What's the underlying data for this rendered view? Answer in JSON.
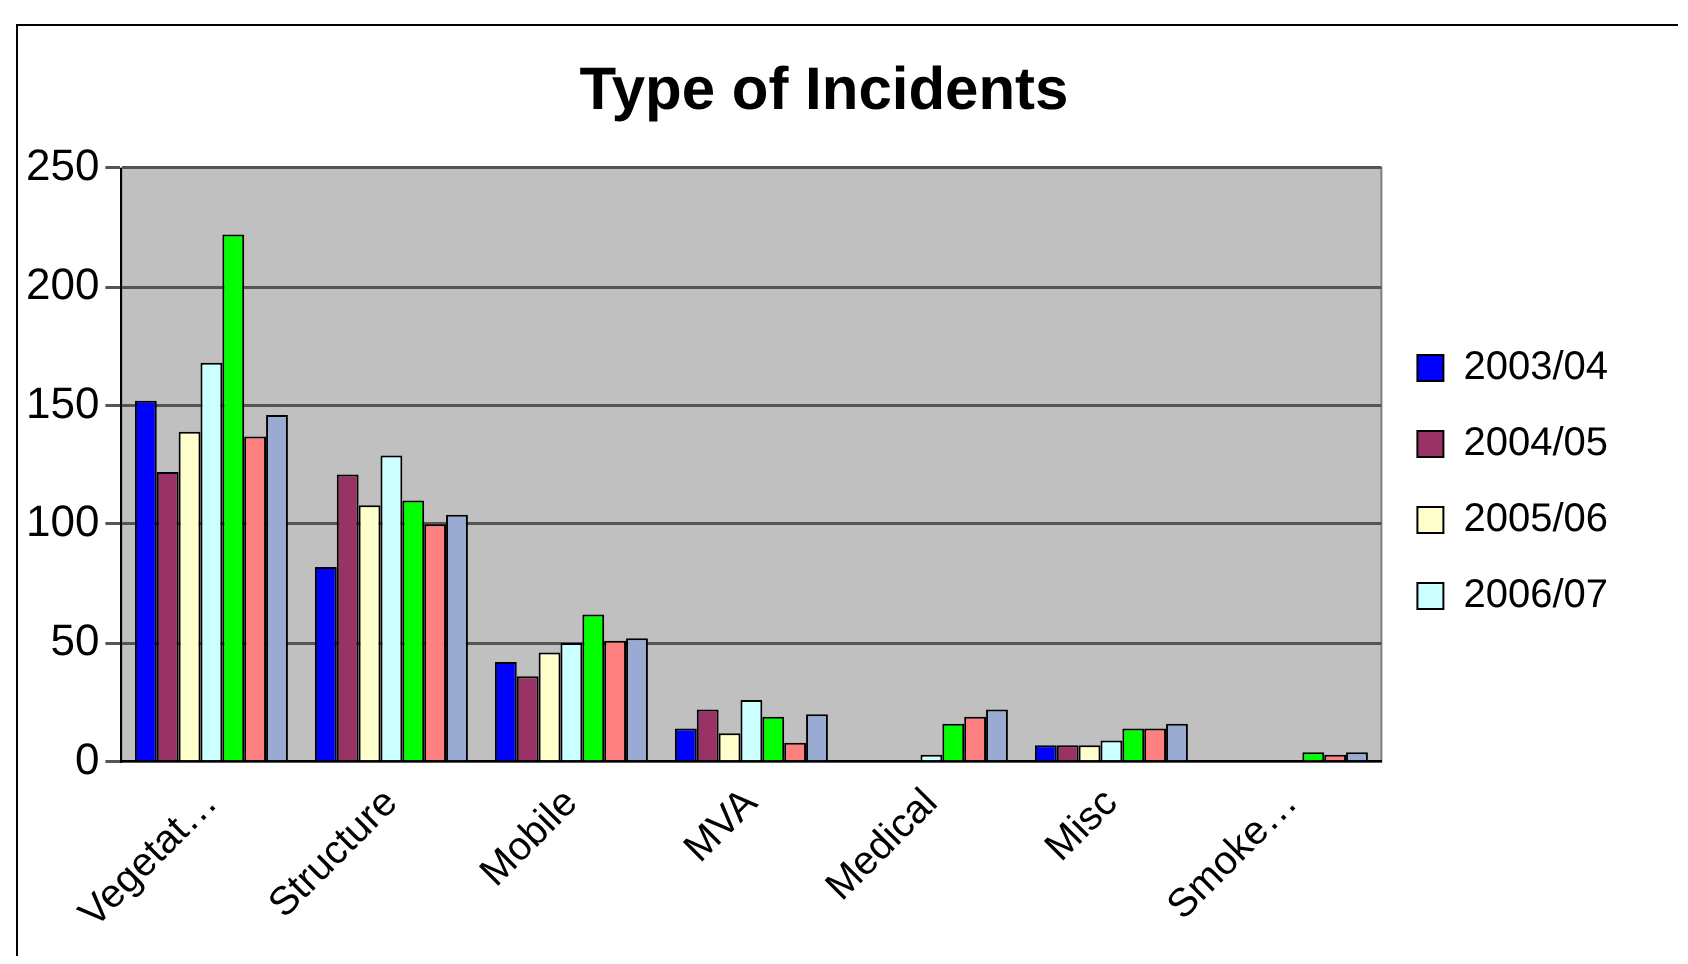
{
  "chart_data": {
    "type": "bar",
    "title": "Type of Incidents",
    "categories": [
      "Vegetat…",
      "Structure",
      "Mobile",
      "MVA",
      "Medical",
      "Misc",
      "Smoke…"
    ],
    "series": [
      {
        "name": "2003/04",
        "color": "#0000ff",
        "values": [
          152,
          82,
          42,
          14,
          0,
          7,
          0
        ]
      },
      {
        "name": "2004/05",
        "color": "#993366",
        "values": [
          122,
          121,
          36,
          22,
          0,
          7,
          0
        ]
      },
      {
        "name": "2005/06",
        "color": "#ffffcc",
        "values": [
          139,
          108,
          46,
          12,
          0,
          7,
          0
        ]
      },
      {
        "name": "2006/07",
        "color": "#ccffff",
        "values": [
          168,
          129,
          50,
          26,
          3,
          9,
          0
        ]
      },
      {
        "color": "#00ff00",
        "values": [
          222,
          110,
          62,
          19,
          16,
          14,
          4
        ]
      },
      {
        "color": "#ff8080",
        "values": [
          137,
          100,
          51,
          8,
          19,
          14,
          3
        ]
      },
      {
        "color": "#99aad3",
        "values": [
          146,
          104,
          52,
          20,
          22,
          16,
          4
        ]
      }
    ],
    "ylim": [
      0,
      250
    ],
    "yticks": [
      0,
      50,
      100,
      150,
      200,
      250
    ],
    "grid": "y",
    "legend": "right"
  }
}
